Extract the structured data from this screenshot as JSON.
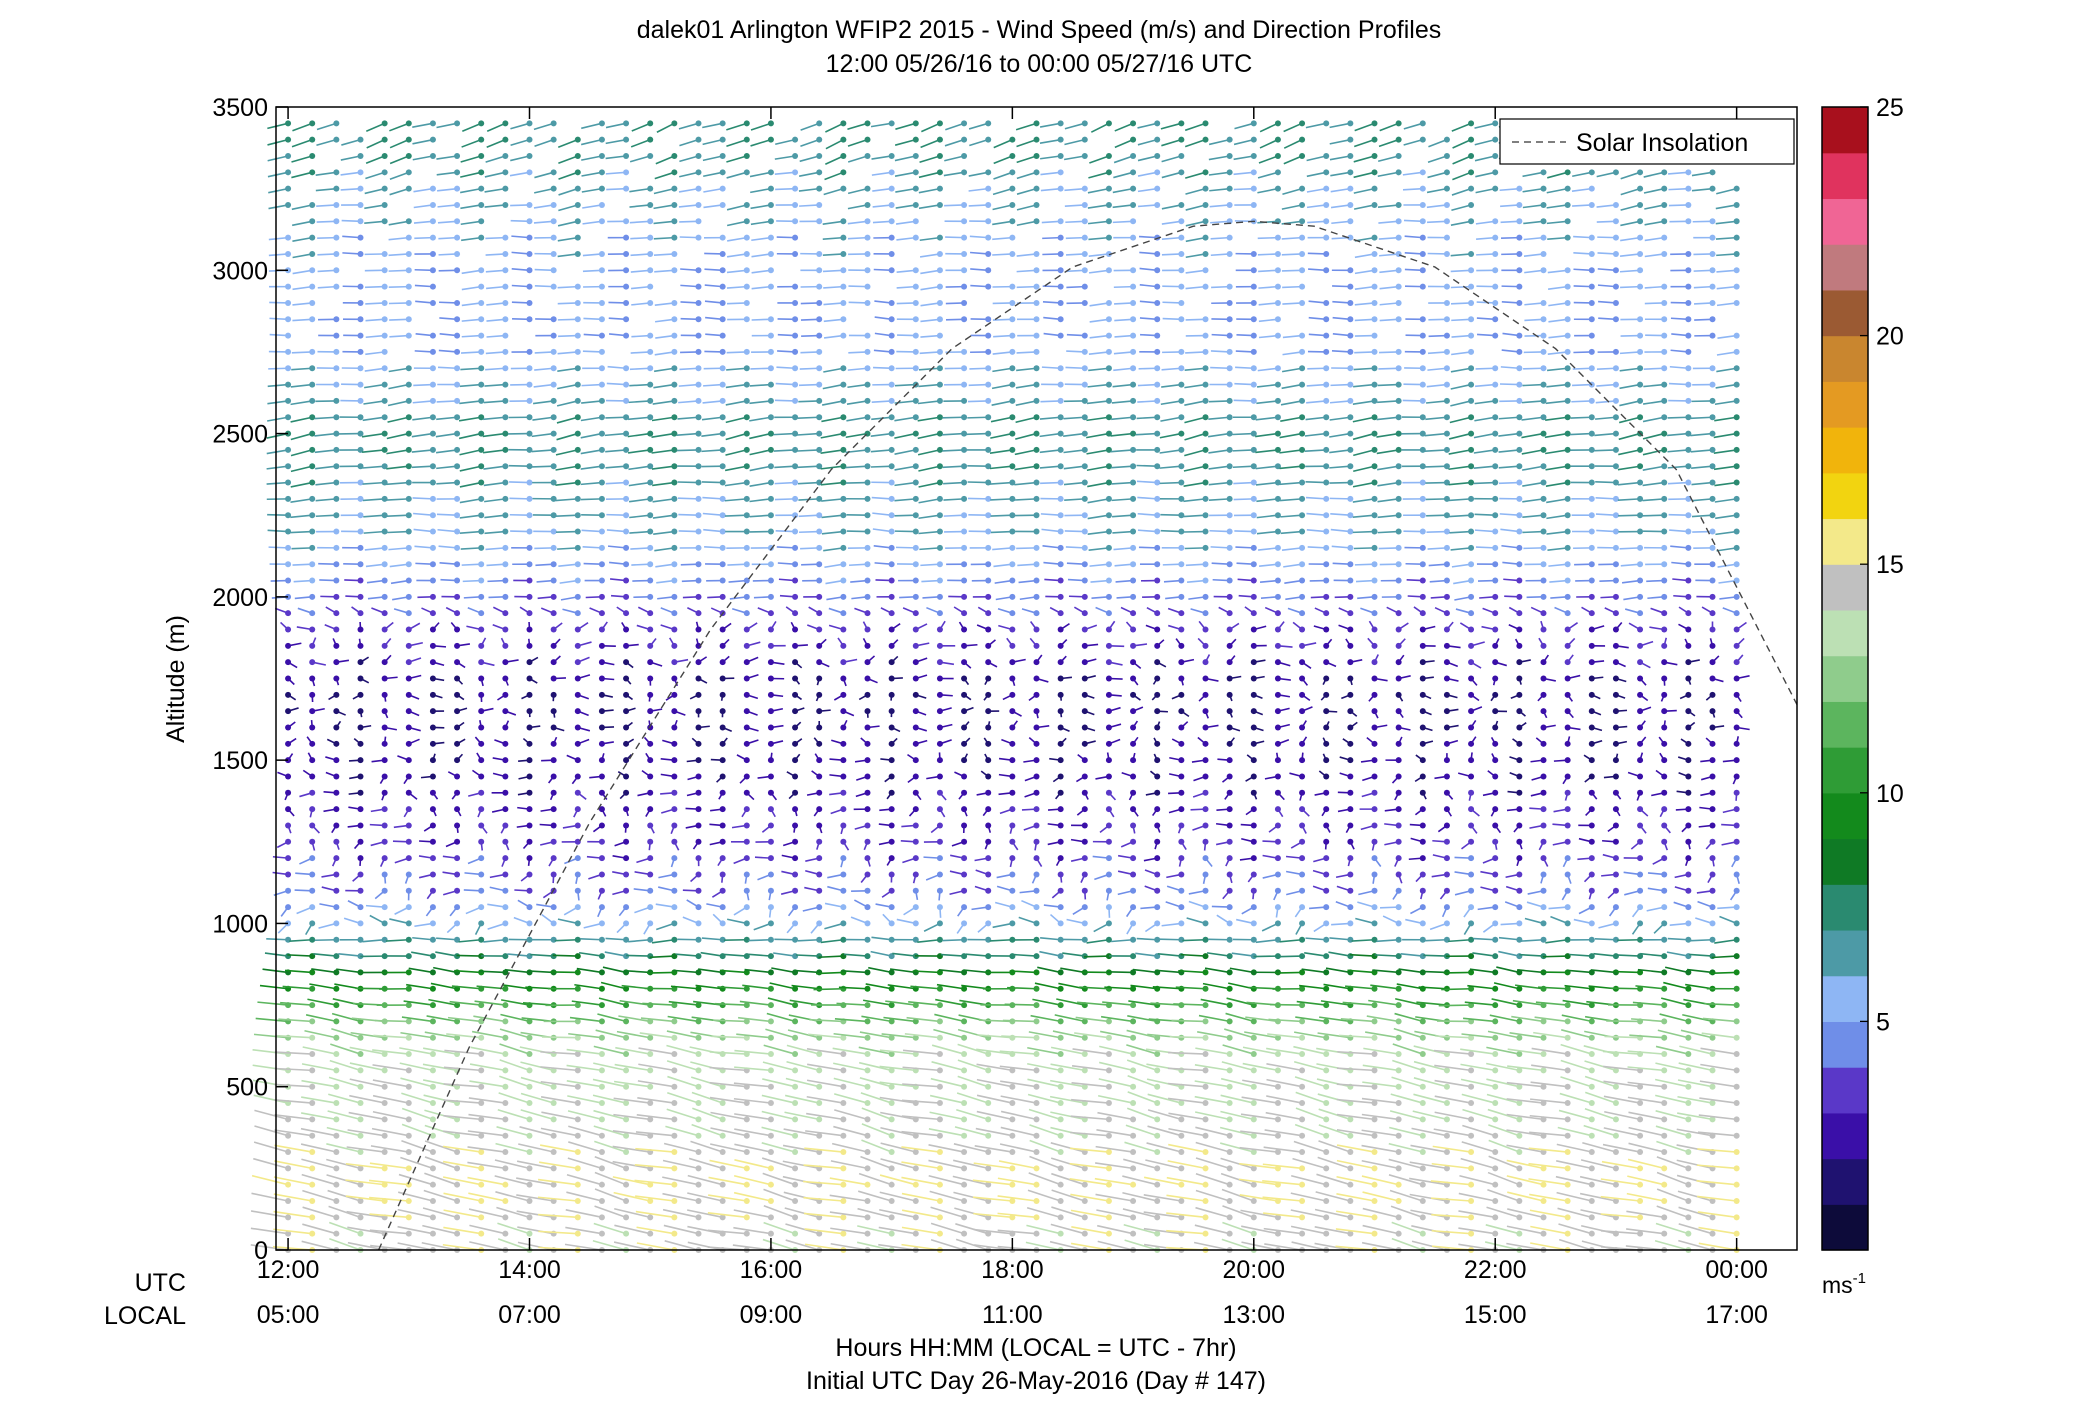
{
  "chart_data": {
    "type": "wind-barb-profile",
    "title": "dalek01 Arlington WFIP2 2015 - Wind Speed (m/s) and Direction Profiles",
    "subtitle": "12:00 05/26/16 to 00:00 05/27/16  UTC",
    "ylabel": "Altitude (m)",
    "xlabel": "Hours HH:MM  (LOCAL = UTC - 7hr)",
    "xlabel2": "Initial UTC Day 26-May-2016 (Day # 147)",
    "ylim": [
      0,
      3500
    ],
    "yticks": [
      0,
      500,
      1000,
      1500,
      2000,
      2500,
      3000,
      3500
    ],
    "x_row_labels": [
      "UTC",
      "LOCAL"
    ],
    "xticks_utc": [
      "12:00",
      "14:00",
      "16:00",
      "18:00",
      "20:00",
      "22:00",
      "00:00"
    ],
    "xticks_local": [
      "05:00",
      "07:00",
      "09:00",
      "11:00",
      "13:00",
      "15:00",
      "17:00"
    ],
    "xlim_hours_utc": [
      11.9,
      24.5
    ],
    "legend": {
      "entries": [
        "Solar Insolation"
      ],
      "placement": "top-right"
    },
    "colorbar": {
      "ticks": [
        5,
        10,
        15,
        20,
        25
      ],
      "range": [
        0,
        25
      ],
      "unit_base": "ms",
      "unit_exp": "-1",
      "colors": [
        "#0d0b3a",
        "#1f1270",
        "#3a0fa8",
        "#5a38c8",
        "#6f8ee8",
        "#8eb6f4",
        "#4d9aa6",
        "#2a8a70",
        "#0f7a25",
        "#138a1c",
        "#2f9c36",
        "#5cb55e",
        "#8fcc8c",
        "#bce0b4",
        "#c0c0c0",
        "#f3e98a",
        "#f2d410",
        "#f1b40c",
        "#e49a22",
        "#c9862f",
        "#9b5a33",
        "#c07a7e",
        "#f06595",
        "#e0335e",
        "#a8101d"
      ]
    },
    "solar_insolation_curve": {
      "hours_utc": [
        12.75,
        13.5,
        14.5,
        15.5,
        16.5,
        17.5,
        18.5,
        19.5,
        20.0,
        20.5,
        21.5,
        22.5,
        23.5,
        24.5
      ],
      "altitude_m": [
        0,
        620,
        1310,
        1900,
        2390,
        2760,
        3010,
        3135,
        3150,
        3135,
        3010,
        2760,
        2390,
        1670
      ]
    },
    "profile_hours_utc": [
      12.0,
      24.0
    ],
    "profile_interval_hours": 0.2,
    "wind_by_altitude": [
      {
        "alt_m": 50,
        "speed_ms": 14.5,
        "dir_deg": 250
      },
      {
        "alt_m": 200,
        "speed_ms": 15.0,
        "dir_deg": 248
      },
      {
        "alt_m": 400,
        "speed_ms": 14.0,
        "dir_deg": 248
      },
      {
        "alt_m": 600,
        "speed_ms": 13.5,
        "dir_deg": 252
      },
      {
        "alt_m": 750,
        "speed_ms": 11.0,
        "dir_deg": 258
      },
      {
        "alt_m": 900,
        "speed_ms": 7.5,
        "dir_deg": 262
      },
      {
        "alt_m": 1100,
        "speed_ms": 4.0,
        "dir_deg": 300
      },
      {
        "alt_m": 1400,
        "speed_ms": 2.5,
        "dir_deg": 330
      },
      {
        "alt_m": 1700,
        "speed_ms": 1.8,
        "dir_deg": 10
      },
      {
        "alt_m": 2000,
        "speed_ms": 4.0,
        "dir_deg": 275
      },
      {
        "alt_m": 2200,
        "speed_ms": 6.0,
        "dir_deg": 270
      },
      {
        "alt_m": 2500,
        "speed_ms": 7.0,
        "dir_deg": 285
      },
      {
        "alt_m": 2800,
        "speed_ms": 5.0,
        "dir_deg": 270
      },
      {
        "alt_m": 3100,
        "speed_ms": 5.5,
        "dir_deg": 275
      },
      {
        "alt_m": 3400,
        "speed_ms": 7.0,
        "dir_deg": 300
      }
    ]
  }
}
